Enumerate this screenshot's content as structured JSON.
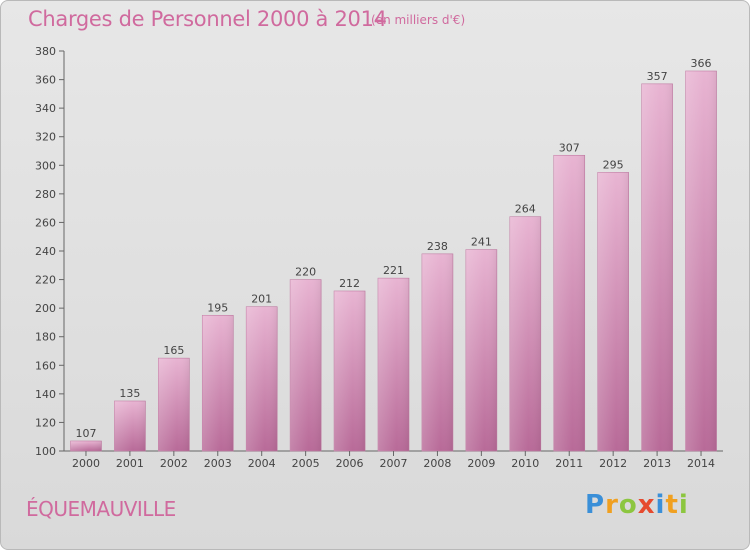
{
  "header": {
    "title": "Charges de Personnel 2000 à 2014",
    "subtitle": "(en milliers d'€)"
  },
  "footer": {
    "commune": "ÉQUEMAUVILLE",
    "brand": "Proxiti",
    "brand_letters": [
      {
        "char": "P",
        "color": "#3a8fd8"
      },
      {
        "char": "r",
        "color": "#f0a020"
      },
      {
        "char": "o",
        "color": "#8cc63f"
      },
      {
        "char": "x",
        "color": "#e64a2e"
      },
      {
        "char": "i",
        "color": "#3a8fd8"
      },
      {
        "char": "t",
        "color": "#f0a020"
      },
      {
        "char": "i",
        "color": "#8cc63f"
      }
    ]
  },
  "colors": {
    "accent": "#d06a9e",
    "bar_light": "#e8b4d2",
    "bar_dark": "#b86a98",
    "axis": "#666666"
  },
  "chart_data": {
    "type": "bar",
    "categories": [
      "2000",
      "2001",
      "2002",
      "2003",
      "2004",
      "2005",
      "2006",
      "2007",
      "2008",
      "2009",
      "2010",
      "2011",
      "2012",
      "2013",
      "2014"
    ],
    "values": [
      107,
      135,
      165,
      195,
      201,
      220,
      212,
      221,
      238,
      241,
      264,
      307,
      295,
      357,
      366
    ],
    "ylim": [
      100,
      380
    ],
    "yticks": [
      100,
      120,
      140,
      160,
      180,
      200,
      220,
      240,
      260,
      280,
      300,
      320,
      340,
      360,
      380
    ],
    "grid": false
  }
}
